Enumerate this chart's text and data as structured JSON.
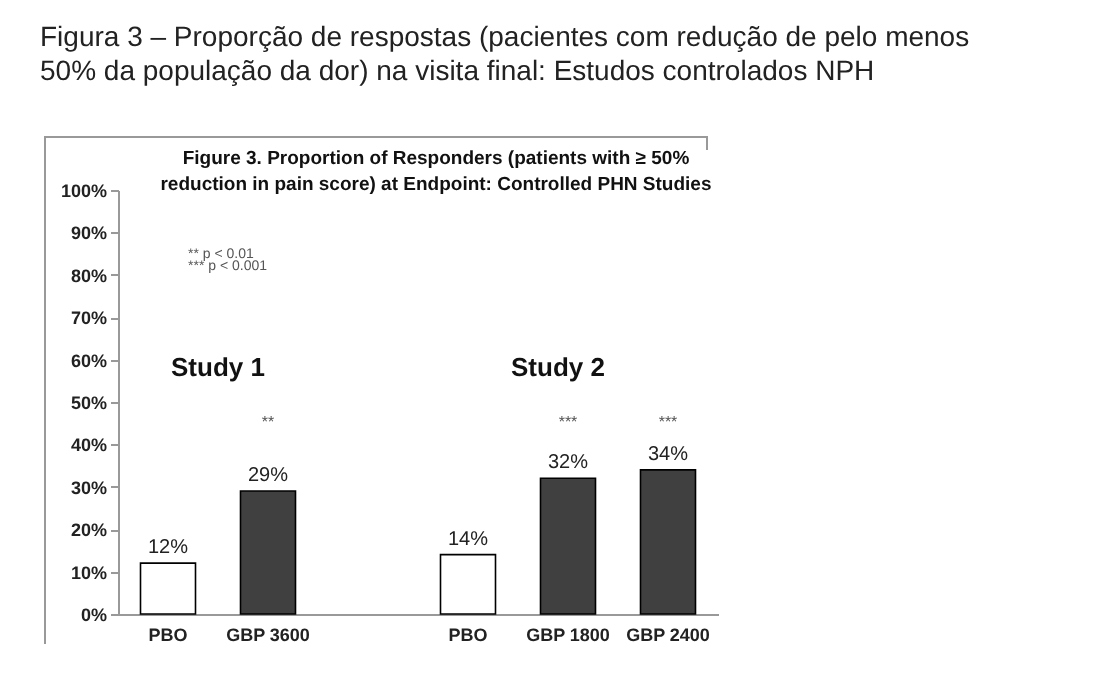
{
  "chart_data": {
    "type": "bar",
    "title": "Figura 3 – Proporção de respostas (pacientes com redução de pelo menos 50% da população da dor) na visita final: Estudos controlados NPH",
    "subtitle": "Figure 3. Proportion of Responders (patients with ≥ 50% reduction in pain score) at Endpoint: Controlled PHN Studies",
    "categories": [
      "PBO",
      "GBP 3600",
      null,
      "PBO",
      "GBP 1800",
      "GBP 2400"
    ],
    "values": [
      12,
      29,
      null,
      14,
      32,
      34
    ],
    "colors": [
      "#ffffff",
      "#404040",
      null,
      "#ffffff",
      "#404040",
      "#404040"
    ],
    "value_labels": [
      "12%",
      "29%",
      null,
      "14%",
      "32%",
      "34%"
    ],
    "ylim": [
      0,
      100
    ],
    "yticks": [
      {
        "value": 0,
        "label": "0%"
      },
      {
        "value": 10,
        "label": "10%"
      },
      {
        "value": 20,
        "label": "20%"
      },
      {
        "value": 30,
        "label": "30%"
      },
      {
        "value": 40,
        "label": "40%"
      },
      {
        "value": 50,
        "label": "50%"
      },
      {
        "value": 60,
        "label": "60%"
      },
      {
        "value": 70,
        "label": "70%"
      },
      {
        "value": 80,
        "label": "80%"
      },
      {
        "value": 90,
        "label": "90%"
      },
      {
        "value": 100,
        "label": "100%"
      }
    ],
    "annotations": [
      "** p < 0.01",
      "*** p < 0.001",
      "Study 1",
      "Study 2",
      "**",
      "***",
      "***"
    ],
    "grid": false
  }
}
